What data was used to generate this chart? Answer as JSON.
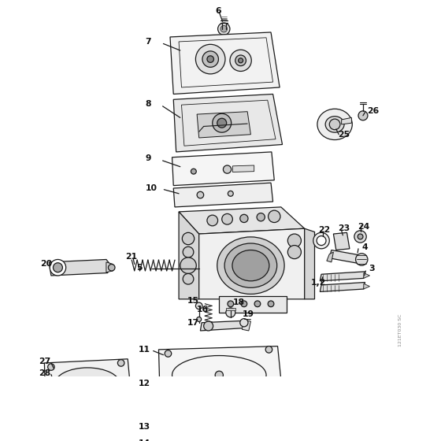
{
  "bg_color": "#ffffff",
  "lc": "#1a1a1a",
  "lw": 0.9,
  "figsize": [
    5.6,
    5.6
  ],
  "dpi": 100,
  "watermark": "121ET030 SC"
}
